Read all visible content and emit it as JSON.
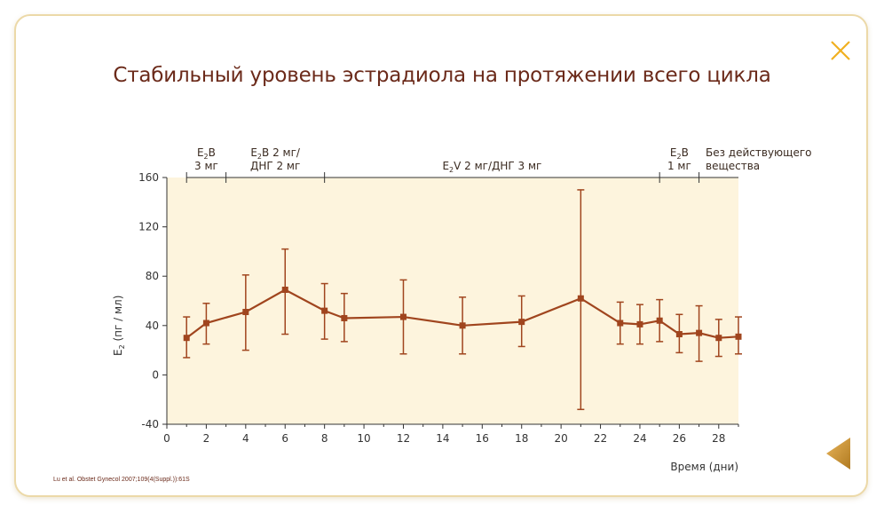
{
  "title": "Стабильный уровень эстрадиола на протяжении всего цикла",
  "citation": "Lu et al. Obstet Gynecol 2007;109(4(Suppl.)):61S",
  "icons": {
    "close": "close-icon",
    "back": "triangle-left-icon"
  },
  "colors": {
    "series": "#a0451e",
    "plot_bg": "#fdf4dd",
    "title": "#6b2a1a",
    "accent": "#f0b020"
  },
  "chart_data": {
    "type": "line",
    "title": "Стабильный уровень эстрадиола на протяжении всего цикла",
    "xlabel": "Время (дни)",
    "ylabel_main": "E",
    "ylabel_sub": "2",
    "ylabel_rest": " (пг / мл)",
    "xlim": [
      0,
      29
    ],
    "ylim": [
      -40,
      160
    ],
    "xticks": [
      0,
      2,
      4,
      6,
      8,
      10,
      12,
      14,
      16,
      18,
      20,
      22,
      24,
      26,
      28
    ],
    "yticks": [
      -40,
      0,
      40,
      80,
      120,
      160
    ],
    "phase_boundaries": [
      1,
      3,
      8,
      25,
      27
    ],
    "phases": [
      {
        "lines": [
          {
            "main": "E",
            "sub": "2",
            "rest": "B"
          },
          {
            "main": "3 мг",
            "sub": "",
            "rest": ""
          }
        ],
        "center": 2
      },
      {
        "lines": [
          {
            "main": "E",
            "sub": "2",
            "rest": "B 2 мг/"
          },
          {
            "main": "ДНГ 2 мг",
            "sub": "",
            "rest": ""
          }
        ],
        "center": 5.5
      },
      {
        "lines": [
          {
            "main": "E",
            "sub": "2",
            "rest": "V 2 мг/ДНГ 3 мг"
          }
        ],
        "center": 16.5
      },
      {
        "lines": [
          {
            "main": "E",
            "sub": "2",
            "rest": "B"
          },
          {
            "main": "1 мг",
            "sub": "",
            "rest": ""
          }
        ],
        "center": 26
      },
      {
        "lines": [
          {
            "main": "Без действующего",
            "sub": "",
            "rest": ""
          },
          {
            "main": "вещества",
            "sub": "",
            "rest": ""
          }
        ],
        "center": 28.2
      }
    ],
    "points": [
      {
        "x": 1,
        "y": 30,
        "lo": 14,
        "hi": 47
      },
      {
        "x": 2,
        "y": 42,
        "lo": 25,
        "hi": 58
      },
      {
        "x": 4,
        "y": 51,
        "lo": 20,
        "hi": 81
      },
      {
        "x": 6,
        "y": 69,
        "lo": 33,
        "hi": 102
      },
      {
        "x": 8,
        "y": 52,
        "lo": 29,
        "hi": 74
      },
      {
        "x": 9,
        "y": 46,
        "lo": 27,
        "hi": 66
      },
      {
        "x": 12,
        "y": 47,
        "lo": 17,
        "hi": 77
      },
      {
        "x": 15,
        "y": 40,
        "lo": 17,
        "hi": 63
      },
      {
        "x": 18,
        "y": 43,
        "lo": 23,
        "hi": 64
      },
      {
        "x": 21,
        "y": 62,
        "lo": -28,
        "hi": 150
      },
      {
        "x": 23,
        "y": 42,
        "lo": 25,
        "hi": 59
      },
      {
        "x": 24,
        "y": 41,
        "lo": 25,
        "hi": 57
      },
      {
        "x": 25,
        "y": 44,
        "lo": 27,
        "hi": 61
      },
      {
        "x": 26,
        "y": 33,
        "lo": 18,
        "hi": 49
      },
      {
        "x": 27,
        "y": 34,
        "lo": 11,
        "hi": 56
      },
      {
        "x": 28,
        "y": 30,
        "lo": 15,
        "hi": 45
      },
      {
        "x": 29,
        "y": 31,
        "lo": 17,
        "hi": 47
      }
    ]
  }
}
